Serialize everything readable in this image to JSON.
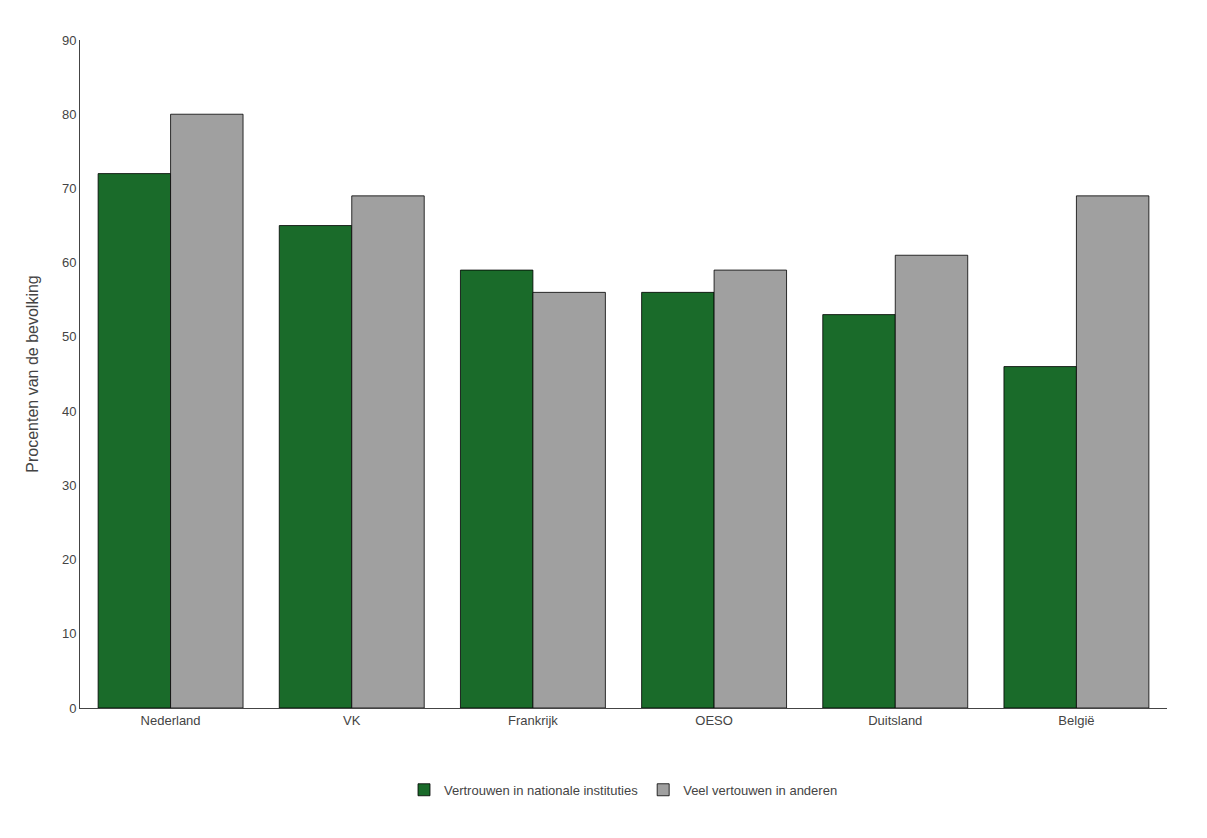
{
  "chart_data": {
    "type": "bar",
    "categories": [
      "Nederland",
      "VK",
      "Frankrijk",
      "OESO",
      "Duitsland",
      "België"
    ],
    "series": [
      {
        "name": "Vertrouwen in nationale instituties",
        "color": "#1a6b2a",
        "values": [
          72,
          65,
          59,
          56,
          53,
          46
        ]
      },
      {
        "name": "Veel vertouwen in anderen",
        "color": "#a0a0a0",
        "values": [
          80,
          69,
          56,
          59,
          61,
          69
        ]
      }
    ],
    "ylabel": "Procenten van de bevolking",
    "ylim": [
      0,
      90
    ],
    "yticks": [
      0,
      10,
      20,
      30,
      40,
      50,
      60,
      70,
      80,
      90
    ],
    "grid": false,
    "legend": "bottom"
  }
}
